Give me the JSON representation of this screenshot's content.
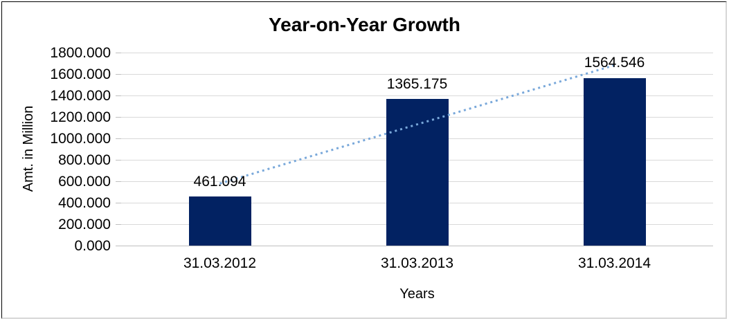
{
  "chart_data": {
    "type": "bar",
    "title": "Year-on-Year Growth",
    "xlabel": "Years",
    "ylabel": "Amt. in Million",
    "categories": [
      "31.03.2012",
      "31.03.2013",
      "31.03.2014"
    ],
    "values": [
      461.094,
      1365.175,
      1564.546
    ],
    "data_labels": [
      "461.094",
      "1365.175",
      "1564.546"
    ],
    "ylim": [
      0,
      1800
    ],
    "ytick_step": 200,
    "ytick_labels": [
      "0.000",
      "200.000",
      "400.000",
      "600.000",
      "800.000",
      "1000.000",
      "1200.000",
      "1400.000",
      "1600.000",
      "1800.000"
    ],
    "grid": true,
    "legend": "none",
    "trendline": {
      "type": "linear",
      "style": "dotted"
    },
    "colors": {
      "bar": "#022262",
      "trendline": "#79a8da",
      "gridline": "#d9d9d9",
      "axis": "#bfbfbf",
      "text": "#000000"
    }
  }
}
